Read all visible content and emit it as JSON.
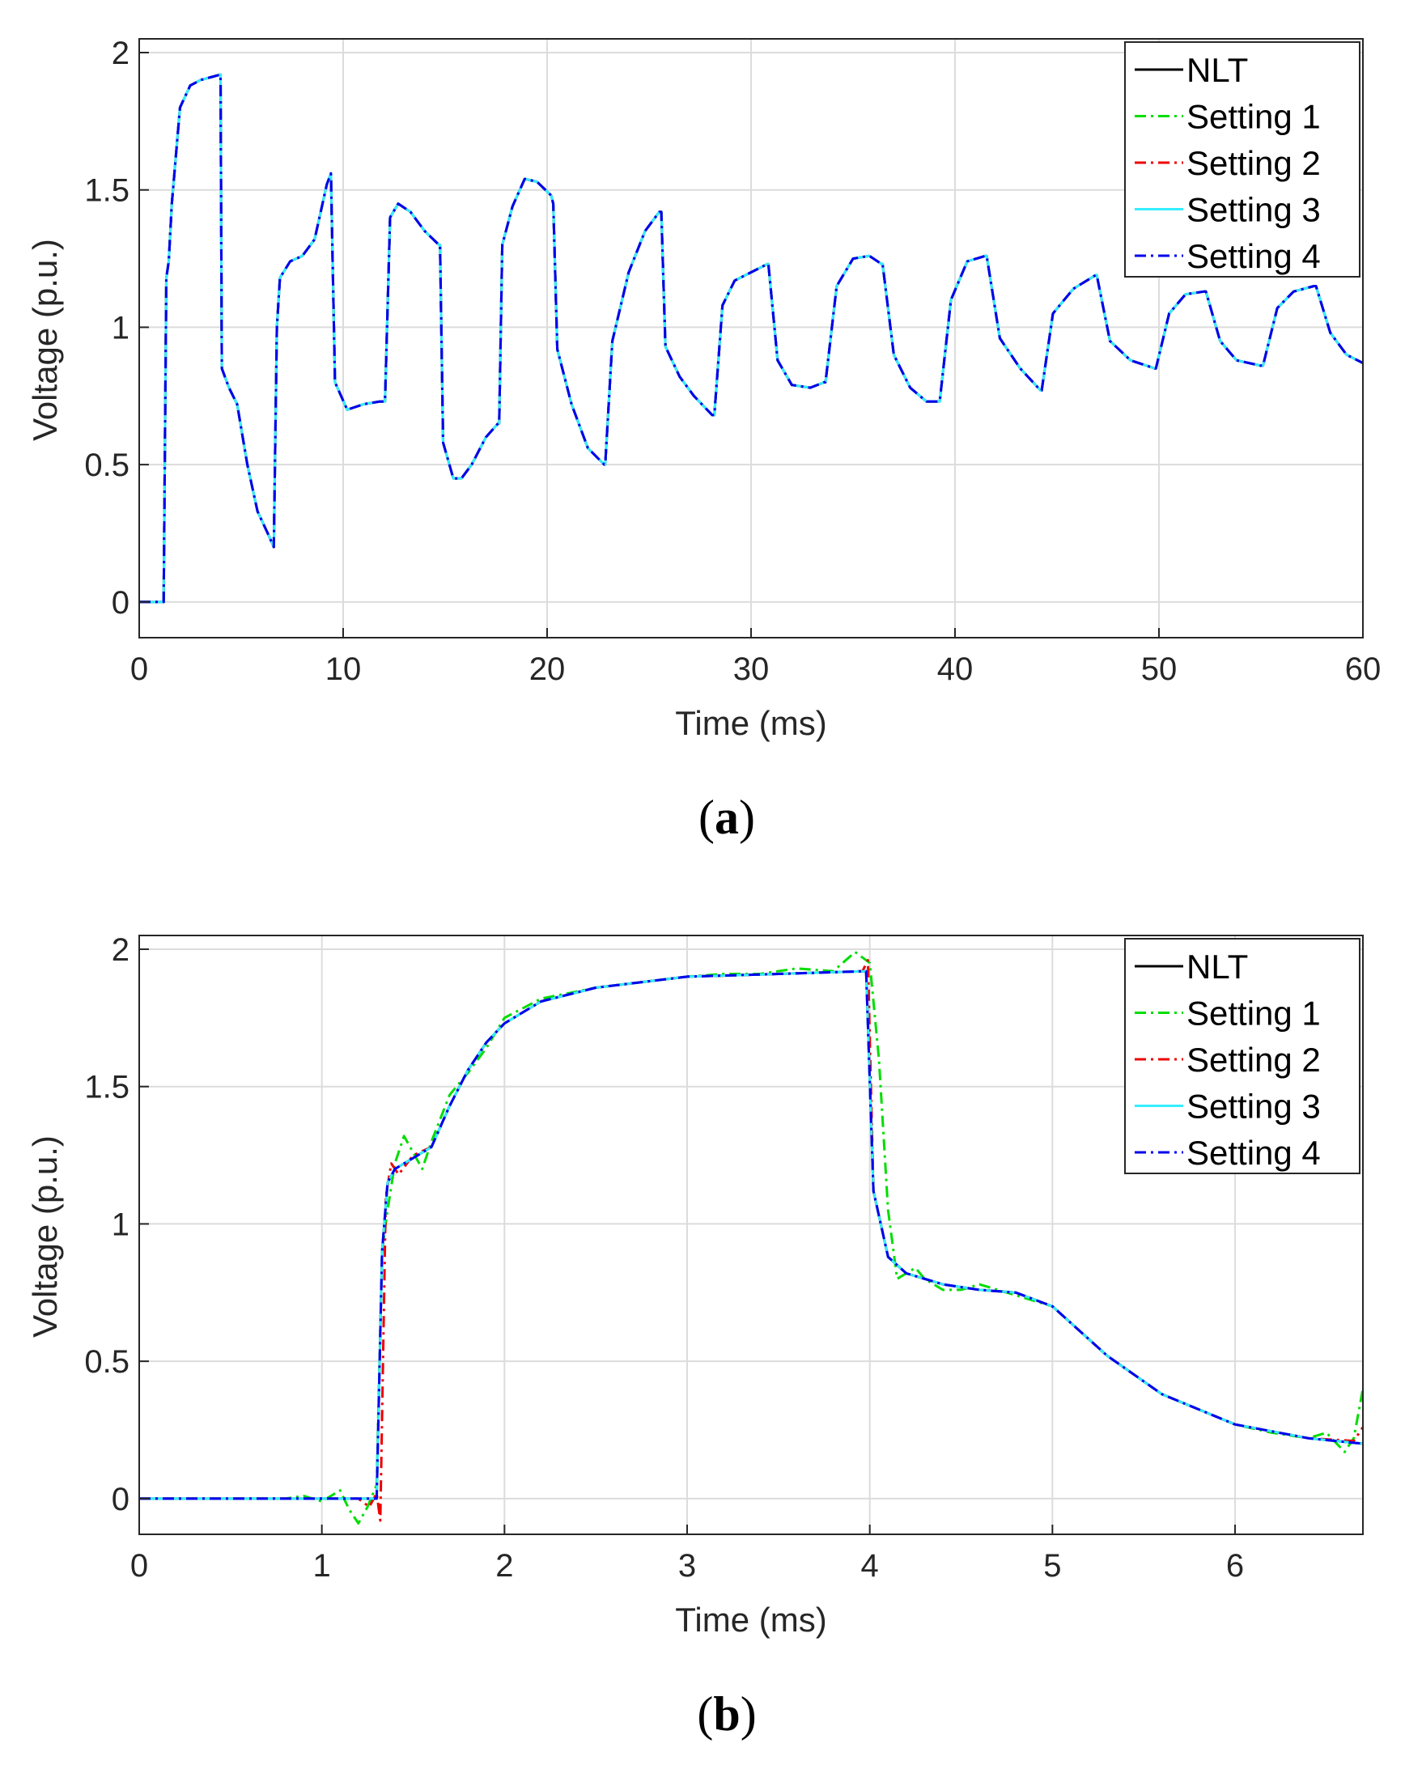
{
  "chart_data": [
    {
      "type": "line",
      "panel_label_open": "(",
      "panel_label_letter": "a",
      "panel_label_close": ")",
      "xlabel": "Time (ms)",
      "ylabel": "Voltage (p.u.)",
      "xlim": [
        0,
        60
      ],
      "ylim": [
        -0.13,
        2.05
      ],
      "xticks": [
        0,
        10,
        20,
        30,
        40,
        50,
        60
      ],
      "xtick_labels": [
        "0",
        "10",
        "20",
        "30",
        "40",
        "50",
        "60"
      ],
      "yticks": [
        0,
        0.5,
        1,
        1.5,
        2
      ],
      "ytick_labels": [
        "0",
        "0.5",
        "1",
        "1.5",
        "2"
      ],
      "grid": true,
      "legend_position": "top-right",
      "series": [
        {
          "name": "NLT",
          "color": "#000000",
          "dash": "solid"
        },
        {
          "name": "Setting 1",
          "color": "#00dd00",
          "dash": "dashdot"
        },
        {
          "name": "Setting 2",
          "color": "#ee0000",
          "dash": "dashdot"
        },
        {
          "name": "Setting 3",
          "color": "#33eeff",
          "dash": "solid"
        },
        {
          "name": "Setting 4",
          "color": "#0000ee",
          "dash": "dashdot"
        }
      ],
      "x": [
        0,
        0.6,
        1.2,
        1.33,
        1.45,
        1.6,
        2.0,
        2.5,
        3.0,
        3.5,
        3.99,
        4.05,
        4.4,
        4.8,
        5.3,
        5.8,
        6.3,
        6.6,
        6.75,
        6.9,
        7.4,
        8.0,
        8.6,
        9.2,
        9.4,
        9.6,
        10.2,
        11.0,
        11.8,
        12.05,
        12.3,
        12.7,
        13.3,
        14.0,
        14.7,
        14.75,
        14.9,
        15.4,
        15.8,
        16.3,
        17.0,
        17.6,
        17.65,
        17.8,
        18.3,
        18.9,
        19.5,
        20.2,
        20.3,
        20.5,
        21.2,
        22.0,
        22.8,
        22.85,
        23.2,
        24.0,
        24.8,
        25.5,
        25.6,
        25.8,
        26.5,
        27.2,
        28.1,
        28.2,
        28.6,
        29.2,
        30.0,
        30.8,
        30.85,
        31.3,
        32.0,
        32.9,
        33.6,
        33.65,
        34.2,
        35.0,
        35.8,
        36.4,
        36.45,
        37.0,
        37.8,
        38.6,
        39.2,
        39.25,
        39.8,
        40.6,
        41.5,
        41.55,
        42.2,
        43.2,
        44.2,
        44.25,
        44.8,
        45.8,
        46.9,
        46.95,
        47.6,
        48.6,
        49.8,
        49.85,
        50.5,
        51.3,
        52.2,
        52.3,
        53.0,
        53.8,
        55.0,
        55.1,
        55.8,
        56.6,
        57.6,
        57.7,
        58.4,
        59.2,
        60.0
      ],
      "y": [
        0,
        0,
        0,
        1.18,
        1.24,
        1.45,
        1.8,
        1.88,
        1.9,
        1.91,
        1.92,
        0.85,
        0.78,
        0.72,
        0.5,
        0.33,
        0.25,
        0.2,
        1.0,
        1.18,
        1.24,
        1.26,
        1.32,
        1.52,
        1.56,
        0.8,
        0.7,
        0.72,
        0.73,
        0.73,
        1.4,
        1.45,
        1.42,
        1.35,
        1.3,
        1.3,
        0.58,
        0.45,
        0.45,
        0.5,
        0.6,
        0.65,
        0.65,
        1.3,
        1.44,
        1.54,
        1.53,
        1.48,
        1.45,
        0.92,
        0.72,
        0.56,
        0.5,
        0.5,
        0.95,
        1.2,
        1.35,
        1.42,
        1.42,
        0.93,
        0.82,
        0.75,
        0.68,
        0.68,
        1.08,
        1.17,
        1.2,
        1.23,
        1.23,
        0.88,
        0.79,
        0.78,
        0.8,
        0.8,
        1.15,
        1.25,
        1.26,
        1.23,
        1.23,
        0.9,
        0.78,
        0.73,
        0.73,
        0.73,
        1.1,
        1.24,
        1.26,
        1.26,
        0.96,
        0.85,
        0.77,
        0.77,
        1.05,
        1.14,
        1.19,
        1.19,
        0.95,
        0.88,
        0.85,
        0.85,
        1.05,
        1.12,
        1.13,
        1.13,
        0.95,
        0.88,
        0.86,
        0.86,
        1.07,
        1.13,
        1.15,
        1.15,
        0.98,
        0.9,
        0.87
      ]
    },
    {
      "type": "line",
      "panel_label_open": "(",
      "panel_label_letter": "b",
      "panel_label_close": ")",
      "xlabel": "Time (ms)",
      "ylabel": "Voltage (p.u.)",
      "xlim": [
        0,
        6.7
      ],
      "ylim": [
        -0.13,
        2.05
      ],
      "xticks": [
        0,
        1,
        2,
        3,
        4,
        5,
        6
      ],
      "xtick_labels": [
        "0",
        "1",
        "2",
        "3",
        "4",
        "5",
        "6"
      ],
      "yticks": [
        0,
        0.5,
        1,
        1.5,
        2
      ],
      "ytick_labels": [
        "0",
        "0.5",
        "1",
        "1.5",
        "2"
      ],
      "grid": true,
      "legend_position": "top-right",
      "series": [
        {
          "name": "NLT",
          "color": "#000000",
          "dash": "solid"
        },
        {
          "name": "Setting 1",
          "color": "#00dd00",
          "dash": "dashdot"
        },
        {
          "name": "Setting 2",
          "color": "#ee0000",
          "dash": "dashdot"
        },
        {
          "name": "Setting 3",
          "color": "#33eeff",
          "dash": "solid"
        },
        {
          "name": "Setting 4",
          "color": "#0000ee",
          "dash": "dashdot"
        }
      ],
      "x": [
        0,
        0.5,
        1.0,
        1.3,
        1.33,
        1.36,
        1.4,
        1.5,
        1.6,
        1.7,
        1.8,
        1.9,
        2.0,
        2.2,
        2.5,
        3.0,
        3.5,
        3.98,
        4.02,
        4.1,
        4.2,
        4.4,
        4.6,
        4.8,
        5.0,
        5.3,
        5.6,
        6.0,
        6.4,
        6.7
      ],
      "y": [
        0,
        0,
        0,
        0,
        0.9,
        1.15,
        1.2,
        1.24,
        1.28,
        1.43,
        1.56,
        1.66,
        1.73,
        1.81,
        1.86,
        1.9,
        1.91,
        1.92,
        1.12,
        0.88,
        0.82,
        0.78,
        0.76,
        0.75,
        0.7,
        0.52,
        0.38,
        0.27,
        0.22,
        0.2
      ],
      "setting1_x": [
        0,
        0.8,
        0.9,
        1.0,
        1.05,
        1.1,
        1.15,
        1.2,
        1.25,
        1.3,
        1.33,
        1.36,
        1.4,
        1.45,
        1.5,
        1.55,
        1.6,
        1.7,
        1.8,
        1.9,
        2.0,
        2.2,
        2.5,
        3.0,
        3.2,
        3.4,
        3.6,
        3.8,
        3.92,
        4.0,
        4.05,
        4.1,
        4.15,
        4.2,
        4.25,
        4.3,
        4.4,
        4.5,
        4.6,
        4.8,
        5.0,
        5.3,
        5.6,
        6.0,
        6.2,
        6.4,
        6.5,
        6.6,
        6.65,
        6.7
      ],
      "setting1_y": [
        0,
        0,
        0.01,
        -0.01,
        0.01,
        0.03,
        -0.04,
        -0.09,
        -0.03,
        0.05,
        0.9,
        1.05,
        1.22,
        1.32,
        1.26,
        1.2,
        1.3,
        1.47,
        1.55,
        1.64,
        1.75,
        1.82,
        1.86,
        1.9,
        1.91,
        1.91,
        1.93,
        1.92,
        1.99,
        1.95,
        1.6,
        1.05,
        0.8,
        0.82,
        0.84,
        0.8,
        0.76,
        0.76,
        0.78,
        0.74,
        0.7,
        0.52,
        0.38,
        0.27,
        0.24,
        0.22,
        0.24,
        0.17,
        0.22,
        0.4
      ],
      "setting2_x": [
        0,
        1.2,
        1.26,
        1.3,
        1.32,
        1.35,
        1.38,
        1.42,
        1.5,
        1.6,
        1.7,
        1.8,
        1.9,
        2.0,
        2.2,
        2.5,
        3.0,
        3.5,
        3.96,
        3.99,
        4.02,
        4.1,
        4.2,
        4.4,
        4.6,
        4.8,
        5.0,
        5.3,
        5.6,
        6.0,
        6.4,
        6.65,
        6.7
      ],
      "setting2_y": [
        0,
        0,
        -0.03,
        0.02,
        -0.08,
        1.1,
        1.22,
        1.18,
        1.25,
        1.28,
        1.43,
        1.56,
        1.66,
        1.73,
        1.81,
        1.86,
        1.9,
        1.91,
        1.92,
        1.96,
        1.12,
        0.88,
        0.82,
        0.78,
        0.76,
        0.75,
        0.7,
        0.52,
        0.38,
        0.27,
        0.22,
        0.21,
        0.26
      ]
    }
  ]
}
